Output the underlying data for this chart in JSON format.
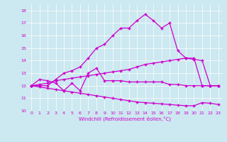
{
  "xlabel": "Windchill (Refroidissement éolien,°C)",
  "bg_color": "#cce8f0",
  "line_color": "#cc00cc",
  "x_ticks": [
    0,
    1,
    2,
    3,
    4,
    5,
    6,
    7,
    8,
    9,
    10,
    11,
    12,
    13,
    14,
    15,
    16,
    17,
    18,
    19,
    20,
    21,
    22,
    23
  ],
  "ylim": [
    10,
    18.5
  ],
  "xlim": [
    -0.5,
    23.5
  ],
  "yticks": [
    10,
    11,
    12,
    13,
    14,
    15,
    16,
    17,
    18
  ],
  "line_spike": {
    "x": [
      0,
      1,
      2,
      3,
      4,
      5,
      6,
      7,
      8,
      9,
      10,
      11,
      12,
      13,
      14,
      15,
      16,
      17,
      18,
      19,
      20,
      21,
      22,
      23
    ],
    "y": [
      12.0,
      12.0,
      12.0,
      12.5,
      13.0,
      13.2,
      13.5,
      14.2,
      15.0,
      15.3,
      16.0,
      16.6,
      16.6,
      17.2,
      17.7,
      17.2,
      16.6,
      17.0,
      14.8,
      14.2,
      14.2,
      12.0,
      12.0,
      12.0
    ]
  },
  "line_zigzag": {
    "x": [
      0,
      1,
      2,
      3,
      4,
      5,
      6,
      7,
      8,
      9,
      10,
      11,
      12,
      13,
      14,
      15,
      16,
      17,
      18,
      19,
      20,
      21,
      22,
      23
    ],
    "y": [
      12.0,
      12.5,
      12.4,
      12.2,
      11.6,
      12.2,
      11.6,
      13.0,
      13.4,
      12.4,
      12.4,
      12.4,
      12.3,
      12.3,
      12.3,
      12.3,
      12.3,
      12.1,
      12.1,
      12.0,
      12.0,
      12.0,
      12.0,
      12.0
    ]
  },
  "line_gradual": {
    "x": [
      0,
      1,
      2,
      3,
      4,
      5,
      6,
      7,
      8,
      9,
      10,
      11,
      12,
      13,
      14,
      15,
      16,
      17,
      18,
      19,
      20,
      21,
      22,
      23
    ],
    "y": [
      12.0,
      12.1,
      12.2,
      12.4,
      12.5,
      12.6,
      12.7,
      12.8,
      12.9,
      13.0,
      13.1,
      13.2,
      13.3,
      13.5,
      13.7,
      13.8,
      13.9,
      14.0,
      14.1,
      14.2,
      14.1,
      14.0,
      12.0,
      12.0
    ]
  },
  "line_decline": {
    "x": [
      0,
      1,
      2,
      3,
      4,
      5,
      6,
      7,
      8,
      9,
      10,
      11,
      12,
      13,
      14,
      15,
      16,
      17,
      18,
      19,
      20,
      21,
      22,
      23
    ],
    "y": [
      12.0,
      11.9,
      11.8,
      11.7,
      11.6,
      11.5,
      11.4,
      11.3,
      11.2,
      11.1,
      11.0,
      10.9,
      10.8,
      10.7,
      10.65,
      10.6,
      10.55,
      10.5,
      10.45,
      10.4,
      10.4,
      10.65,
      10.6,
      10.5
    ]
  }
}
